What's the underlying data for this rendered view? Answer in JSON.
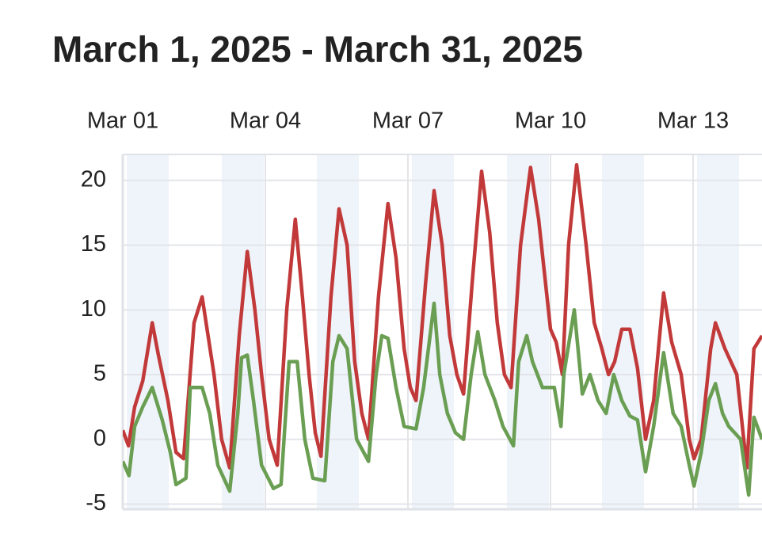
{
  "chart_data": {
    "type": "line",
    "title": "March 1, 2025 - March 31, 2025",
    "xlim": [
      0,
      13.45
    ],
    "xticks": [
      {
        "value": 0,
        "label": "Mar 01"
      },
      {
        "value": 3,
        "label": "Mar 04"
      },
      {
        "value": 6,
        "label": "Mar 07"
      },
      {
        "value": 9,
        "label": "Mar 10"
      },
      {
        "value": 12,
        "label": "Mar 13"
      }
    ],
    "ylim": [
      -5.4,
      22
    ],
    "yticks": [
      -5,
      0,
      5,
      10,
      15,
      20
    ],
    "grid": true,
    "series": [
      {
        "color": "#c2393a",
        "x": [
          0.0,
          0.12,
          0.25,
          0.42,
          0.62,
          0.75,
          0.95,
          1.12,
          1.28,
          1.5,
          1.67,
          1.92,
          2.08,
          2.25,
          2.45,
          2.62,
          2.78,
          2.92,
          3.08,
          3.25,
          3.45,
          3.63,
          3.78,
          3.92,
          4.05,
          4.17,
          4.38,
          4.55,
          4.72,
          4.88,
          5.03,
          5.17,
          5.38,
          5.58,
          5.75,
          5.92,
          6.05,
          6.17,
          6.37,
          6.55,
          6.72,
          6.88,
          7.03,
          7.17,
          7.35,
          7.55,
          7.72,
          7.88,
          8.03,
          8.17,
          8.37,
          8.58,
          8.75,
          9.0,
          9.12,
          9.25,
          9.38,
          9.55,
          9.75,
          9.92,
          10.08,
          10.22,
          10.35,
          10.5,
          10.67,
          10.83,
          11.0,
          11.17,
          11.38,
          11.55,
          11.75,
          11.92,
          12.02,
          12.17,
          12.37,
          12.47,
          12.67,
          12.92,
          13.13,
          13.28,
          13.45
        ],
        "values": [
          0.7,
          -0.5,
          2.5,
          4.5,
          9,
          6.5,
          3,
          -1,
          -1.5,
          9,
          11,
          5,
          0,
          -2.2,
          8,
          14.5,
          10,
          5,
          0,
          -2,
          10,
          17,
          11,
          5,
          0.5,
          -1.3,
          11,
          17.8,
          15,
          6,
          2,
          0,
          11,
          18.2,
          14,
          7,
          4,
          3,
          12,
          19.2,
          15,
          8,
          5,
          3.5,
          12,
          20.7,
          16,
          9,
          5,
          4,
          15,
          21,
          17,
          8.5,
          7.5,
          5,
          15,
          21.2,
          15,
          9,
          7,
          5,
          6,
          8.5,
          8.5,
          5.5,
          0,
          3,
          11.3,
          7.5,
          5,
          0,
          -1.5,
          0,
          7,
          9,
          7,
          5,
          -2.2,
          7,
          8
        ]
      },
      {
        "color": "#6a9e52",
        "x": [
          0.0,
          0.13,
          0.25,
          0.42,
          0.62,
          0.83,
          1.0,
          1.12,
          1.33,
          1.42,
          1.67,
          1.83,
          2.0,
          2.25,
          2.42,
          2.5,
          2.62,
          2.75,
          2.92,
          3.17,
          3.33,
          3.5,
          3.67,
          3.83,
          4.0,
          4.25,
          4.42,
          4.55,
          4.72,
          4.92,
          5.17,
          5.33,
          5.45,
          5.58,
          5.75,
          5.92,
          6.17,
          6.33,
          6.55,
          6.67,
          6.83,
          7.0,
          7.17,
          7.33,
          7.47,
          7.62,
          7.83,
          8.0,
          8.22,
          8.33,
          8.5,
          8.62,
          8.83,
          9.08,
          9.22,
          9.28,
          9.5,
          9.67,
          9.83,
          10.0,
          10.17,
          10.33,
          10.5,
          10.67,
          10.83,
          11.0,
          11.17,
          11.38,
          11.58,
          11.75,
          11.92,
          12.02,
          12.17,
          12.33,
          12.47,
          12.62,
          12.75,
          13.0,
          13.17,
          13.28,
          13.45
        ],
        "values": [
          -1.7,
          -2.8,
          1,
          2.5,
          4,
          1.5,
          -1,
          -3.5,
          -3,
          4,
          4,
          2,
          -2,
          -4,
          2,
          6.3,
          6.5,
          3,
          -2,
          -3.8,
          -3.5,
          6,
          6,
          0,
          -3,
          -3.2,
          6,
          8,
          7,
          0,
          -1.7,
          5,
          8,
          7.8,
          4,
          1,
          0.8,
          4,
          10.5,
          5,
          2,
          0.5,
          0,
          5,
          8.3,
          5,
          3,
          1,
          -0.5,
          6,
          8,
          6,
          4,
          4,
          1,
          5,
          10,
          3.5,
          5,
          3,
          2,
          5,
          3,
          1.8,
          1.5,
          -2.5,
          1,
          6.7,
          2,
          1,
          -2,
          -3.6,
          -1,
          3,
          4.3,
          2,
          1,
          0,
          -4.3,
          1.7,
          0
        ]
      }
    ]
  }
}
